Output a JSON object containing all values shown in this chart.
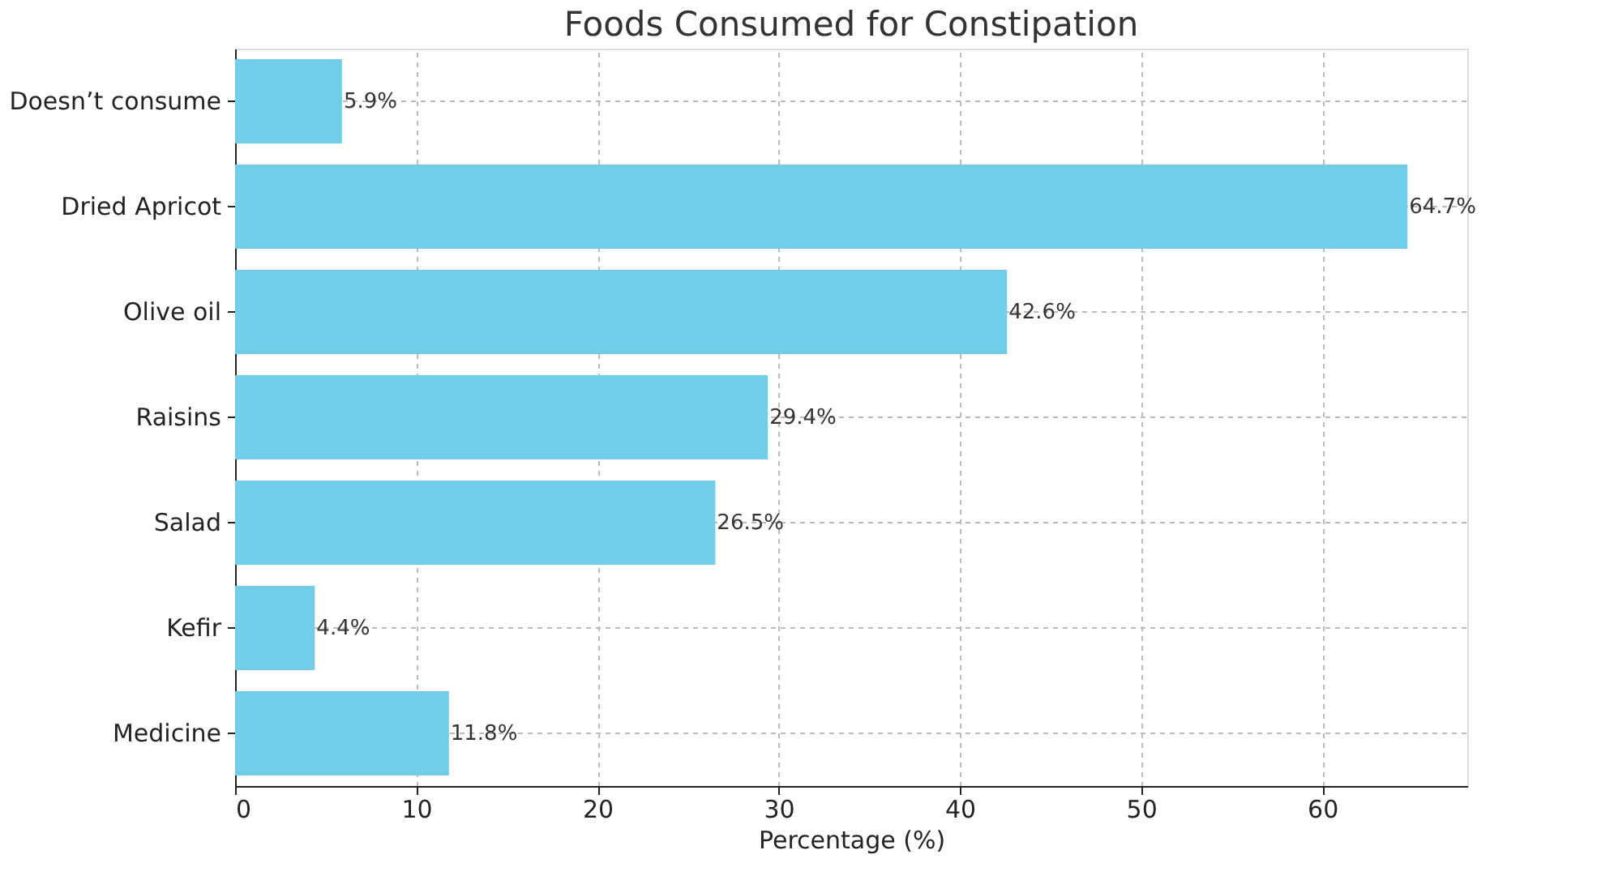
{
  "chart_data": {
    "type": "bar",
    "orientation": "horizontal",
    "title": "Foods Consumed for Constipation",
    "xlabel": "Percentage (%)",
    "categories": [
      "Doesn’t consume",
      "Dried Apricot",
      "Olive oil",
      "Raisins",
      "Salad",
      "Kefir",
      "Medicine"
    ],
    "values": [
      5.9,
      64.7,
      42.6,
      29.4,
      26.5,
      4.4,
      11.8
    ],
    "value_labels": [
      "5.9%",
      "64.7%",
      "42.6%",
      "29.4%",
      "26.5%",
      "4.4%",
      "11.8%"
    ],
    "color": "#72cde9",
    "xlim": [
      0,
      68
    ],
    "xticks": [
      0,
      10,
      20,
      30,
      40,
      50,
      60
    ],
    "grid": true
  }
}
